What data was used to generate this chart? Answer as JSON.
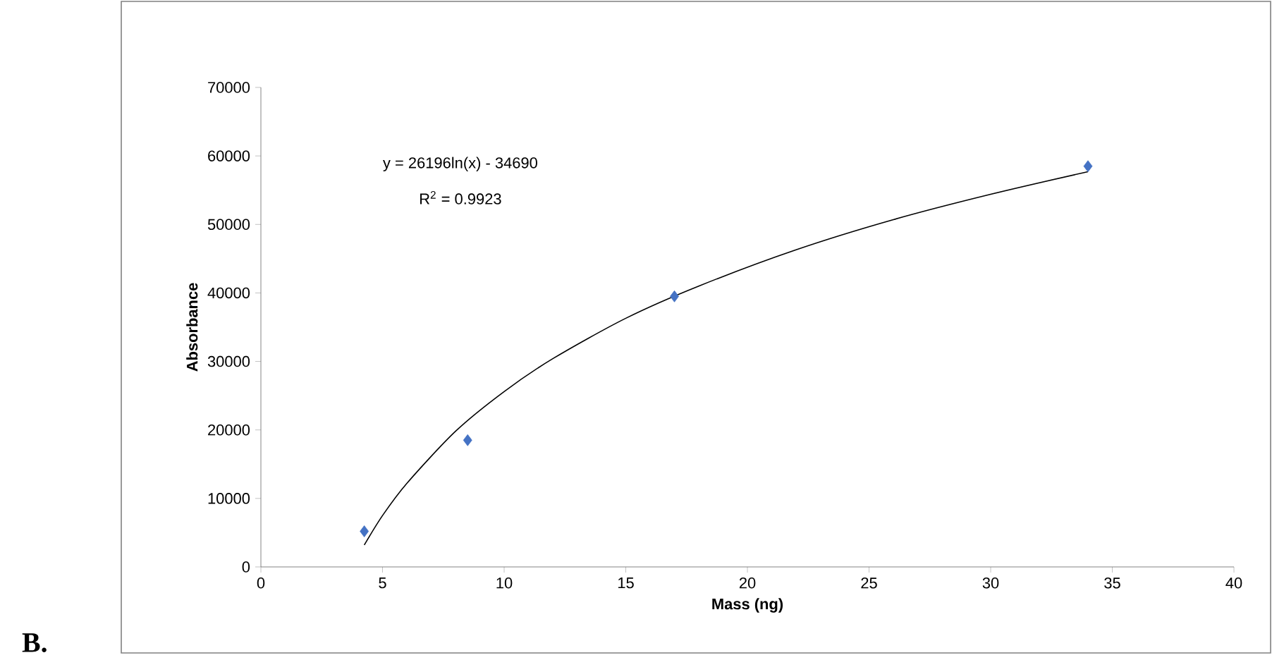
{
  "chart_data": {
    "type": "scatter",
    "xlabel": "Mass (ng)",
    "ylabel": "Absorbance",
    "xlim": [
      0,
      40
    ],
    "xticks": [
      0,
      5,
      10,
      15,
      20,
      25,
      30,
      35,
      40
    ],
    "ylim": [
      0,
      70000
    ],
    "yticks": [
      0,
      10000,
      20000,
      30000,
      40000,
      50000,
      60000,
      70000
    ],
    "grid": false,
    "annotations": [
      "y = 26196ln(x) - 34690",
      "R$^{2}$ = 0.9923",
      "B."
    ],
    "series": [
      {
        "marker": "diamond",
        "color": "#4472c4",
        "x": [
          4.25,
          8.5,
          17,
          34
        ],
        "values": [
          5200,
          18500,
          39500,
          58500
        ]
      },
      {
        "type": "line",
        "marker": "none",
        "color": "#000000",
        "x": [
          4.25,
          5,
          6,
          8,
          10,
          12,
          15,
          18,
          22,
          26,
          30,
          34
        ],
        "values": [
          3200,
          7500,
          12200,
          19800,
          25600,
          30400,
          36300,
          41000,
          46300,
          50700,
          54400,
          57700
        ]
      }
    ]
  }
}
